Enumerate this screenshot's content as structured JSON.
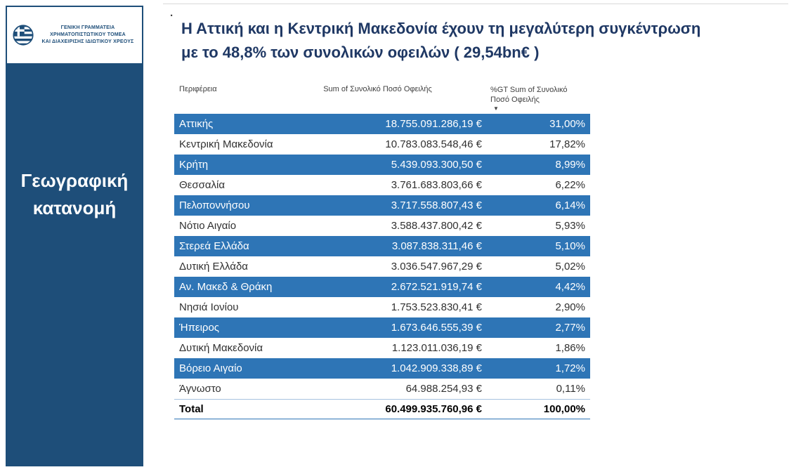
{
  "sidebar": {
    "agency_line1": "ΓΕΝΙΚΗ ΓΡΑΜΜΑΤΕΙΑ ΧΡΗΜΑΤΟΠΙΣΤΩΤΙΚΟΥ ΤΟΜΕΑ",
    "agency_line2": "ΚΑΙ ΔΙΑΧΕΙΡΙΣΗΣ ΙΔΙΩΤΙΚΟΥ ΧΡΕΟΥΣ",
    "label_line1": "Γεωγραφική",
    "label_line2": "κατανομή",
    "background_color": "#1E4E79"
  },
  "title": {
    "bullet": "·",
    "line1": "Η Αττική και η Κεντρική Μακεδονία  έχουν τη μεγαλύτερη συγκέντρωση",
    "line2": "με το 48,8% των συνολικών οφειλών ( 29,54bn€ )",
    "color": "#1F3864"
  },
  "table": {
    "header_region": "Περιφέρεια",
    "header_amount": "Sum of Συνολικό Ποσό Οφειλής",
    "header_percent": "%GT Sum of Συνολικό Ποσό Οφειλής",
    "sort_icon_glyph": "▼",
    "highlight_color": "#2E75B6",
    "rows": [
      {
        "region": "Αττικής",
        "amount": "18.755.091.286,19 €",
        "percent": "31,00%",
        "highlight": true
      },
      {
        "region": "Κεντρική Μακεδονία",
        "amount": "10.783.083.548,46 €",
        "percent": "17,82%",
        "highlight": false
      },
      {
        "region": "Κρήτη",
        "amount": "5.439.093.300,50 €",
        "percent": "8,99%",
        "highlight": true
      },
      {
        "region": "Θεσσαλία",
        "amount": "3.761.683.803,66 €",
        "percent": "6,22%",
        "highlight": false
      },
      {
        "region": "Πελοποννήσου",
        "amount": "3.717.558.807,43 €",
        "percent": "6,14%",
        "highlight": true
      },
      {
        "region": "Νότιο Αιγαίο",
        "amount": "3.588.437.800,42 €",
        "percent": "5,93%",
        "highlight": false
      },
      {
        "region": "Στερεά Ελλάδα",
        "amount": "3.087.838.311,46 €",
        "percent": "5,10%",
        "highlight": true
      },
      {
        "region": "Δυτική Ελλάδα",
        "amount": "3.036.547.967,29 €",
        "percent": "5,02%",
        "highlight": false
      },
      {
        "region": "Αν. Μακεδ & Θράκη",
        "amount": "2.672.521.919,74 €",
        "percent": "4,42%",
        "highlight": true
      },
      {
        "region": "Νησιά Ιονίου",
        "amount": "1.753.523.830,41 €",
        "percent": "2,90%",
        "highlight": false
      },
      {
        "region": "Ήπειρος",
        "amount": "1.673.646.555,39 €",
        "percent": "2,77%",
        "highlight": true
      },
      {
        "region": "Δυτική Μακεδονία",
        "amount": "1.123.011.036,19 €",
        "percent": "1,86%",
        "highlight": false
      },
      {
        "region": "Βόρειο Αιγαίο",
        "amount": "1.042.909.338,89 €",
        "percent": "1,72%",
        "highlight": true
      },
      {
        "region": "Άγνωστο",
        "amount": "64.988.254,93 €",
        "percent": "0,11%",
        "highlight": false
      }
    ],
    "total": {
      "label": "Total",
      "amount": "60.499.935.760,96 €",
      "percent": "100,00%"
    }
  },
  "chart_data": {
    "type": "table",
    "title": "Η Αττική και η Κεντρική Μακεδονία έχουν τη μεγαλύτερη συγκέντρωση με το 48,8% των συνολικών οφειλών ( 29,54bn€ )",
    "columns": [
      "Περιφέρεια",
      "Sum of Συνολικό Ποσό Οφειλής",
      "%GT Sum of Συνολικό Ποσό Οφειλής"
    ],
    "categories": [
      "Αττικής",
      "Κεντρική Μακεδονία",
      "Κρήτη",
      "Θεσσαλία",
      "Πελοποννήσου",
      "Νότιο Αιγαίο",
      "Στερεά Ελλάδα",
      "Δυτική Ελλάδα",
      "Αν. Μακεδ & Θράκη",
      "Νησιά Ιονίου",
      "Ήπειρος",
      "Δυτική Μακεδονία",
      "Βόρειο Αιγαίο",
      "Άγνωστο"
    ],
    "series": [
      {
        "name": "Sum of Συνολικό Ποσό Οφειλής (EUR)",
        "values": [
          18755091286.19,
          10783083548.46,
          5439093300.5,
          3761683803.66,
          3717558807.43,
          3588437800.42,
          3087838311.46,
          3036547967.29,
          2672521919.74,
          1753523830.41,
          1673646555.39,
          1123011036.19,
          1042909338.89,
          64988254.93
        ]
      },
      {
        "name": "%GT Sum of Συνολικό Ποσό Οφειλής",
        "values": [
          31.0,
          17.82,
          8.99,
          6.22,
          6.14,
          5.93,
          5.1,
          5.02,
          4.42,
          2.9,
          2.77,
          1.86,
          1.72,
          0.11
        ]
      }
    ],
    "total": {
      "label": "Total",
      "amount_eur": 60499935760.96,
      "percent": 100.0
    },
    "sort": "descending by amount",
    "legend": "none",
    "grid": "row striping, every other row highlighted blue"
  }
}
